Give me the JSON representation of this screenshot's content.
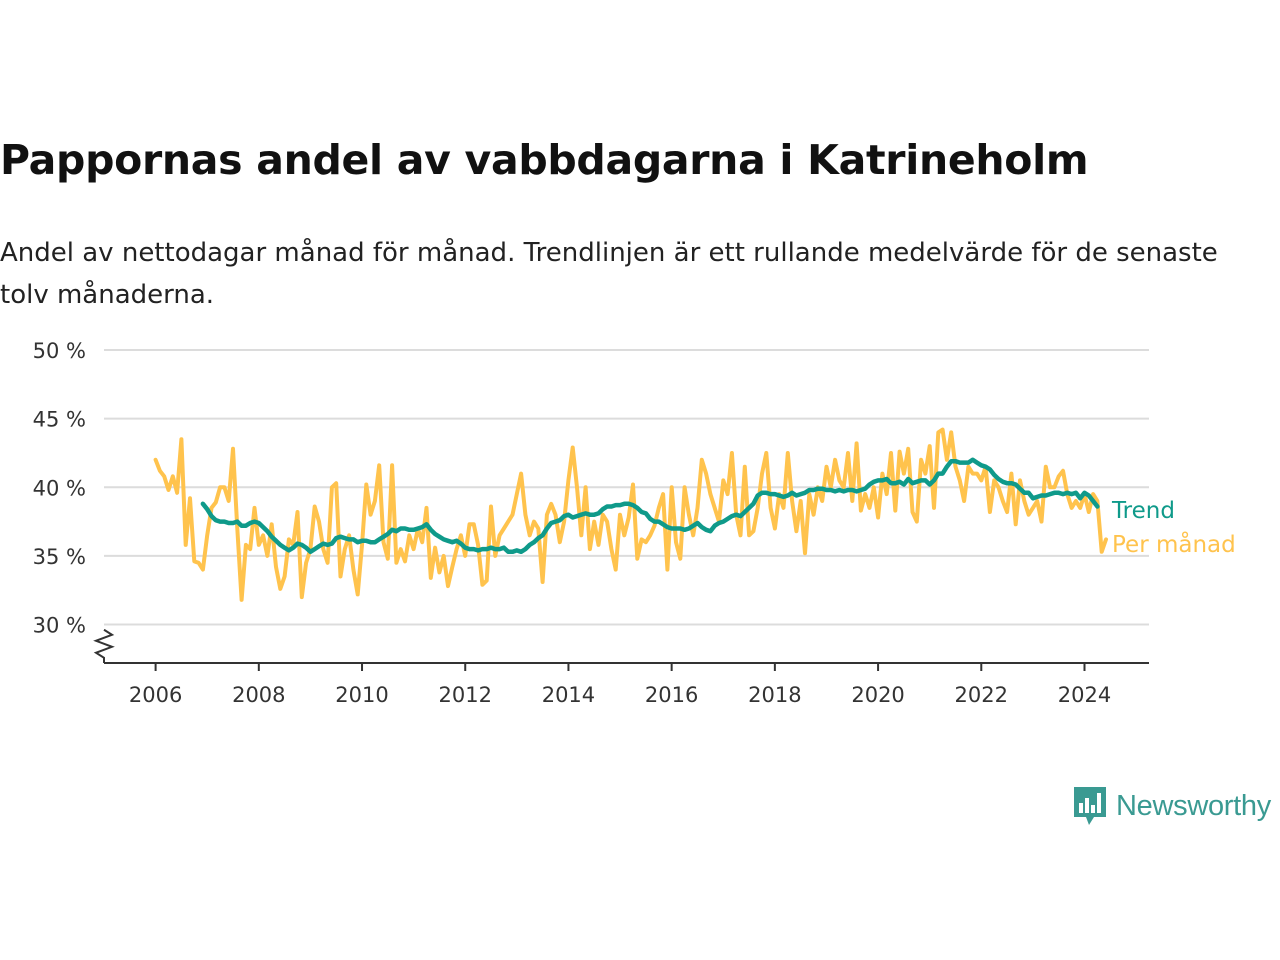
{
  "title": "Pappornas andel av vabbdagarna i Katrineholm",
  "subtitle": "Andel av nettodagar månad för månad. Trendlinjen är ett rullande medelvärde för de senaste tolv månaderna.",
  "brand": {
    "name": "Newsworthy",
    "icon": "newsworthy-logo-icon",
    "color": "#3a9a92"
  },
  "chart_data": {
    "type": "line",
    "title": "Pappornas andel av vabbdagarna i Katrineholm",
    "xlabel": "",
    "ylabel": "",
    "xlim": [
      2005.0,
      2025.25
    ],
    "ylim": [
      27.2,
      50
    ],
    "y_axis_broken": true,
    "x_ticks": [
      2006,
      2008,
      2010,
      2012,
      2014,
      2016,
      2018,
      2020,
      2022,
      2024
    ],
    "x_tick_labels": [
      "2006",
      "2008",
      "2010",
      "2012",
      "2014",
      "2016",
      "2018",
      "2020",
      "2022",
      "2024"
    ],
    "y_ticks": [
      30,
      35,
      40,
      45,
      50
    ],
    "y_tick_labels": [
      "30 %",
      "35 %",
      "40 %",
      "45 %",
      "50 %"
    ],
    "grid": true,
    "legend": "direct labels at line ends (right)",
    "series": [
      {
        "name": "Per månad",
        "color": "#ffc34d",
        "x_start": 2006.0,
        "step": 0.0833333,
        "values": [
          42.0,
          41.2,
          40.8,
          39.8,
          40.8,
          39.6,
          43.5,
          35.8,
          39.2,
          34.6,
          34.5,
          34.0,
          36.5,
          38.5,
          38.9,
          40.0,
          40.0,
          39.0,
          42.8,
          37.0,
          31.8,
          35.8,
          35.5,
          38.5,
          35.8,
          36.5,
          35.0,
          37.3,
          34.2,
          32.6,
          33.5,
          36.2,
          35.8,
          38.2,
          32.0,
          34.5,
          35.5,
          38.6,
          37.5,
          35.5,
          34.5,
          40.0,
          40.3,
          33.5,
          35.5,
          36.5,
          34.0,
          32.2,
          35.8,
          40.2,
          38.0,
          39.0,
          41.6,
          36.0,
          34.8,
          41.6,
          34.5,
          35.5,
          34.6,
          36.5,
          35.5,
          37.0,
          36.0,
          38.5,
          33.4,
          35.6,
          33.8,
          35.0,
          32.8,
          34.2,
          35.5,
          36.5,
          35.0,
          37.3,
          37.3,
          35.8,
          32.9,
          33.2,
          38.6,
          35.0,
          36.5,
          37.0,
          37.5,
          38.0,
          39.5,
          41.0,
          38.0,
          36.5,
          37.5,
          37.0,
          33.1,
          38.0,
          38.8,
          38.0,
          36.0,
          37.5,
          40.5,
          42.9,
          40.0,
          36.5,
          40.0,
          35.5,
          37.5,
          35.8,
          38.0,
          37.5,
          35.5,
          34.0,
          38.0,
          36.5,
          37.8,
          40.2,
          34.8,
          36.2,
          36.0,
          36.5,
          37.2,
          38.5,
          39.5,
          34.0,
          40.0,
          36.0,
          34.8,
          40.0,
          38.0,
          36.5,
          38.5,
          42.0,
          41.0,
          39.5,
          38.5,
          37.5,
          40.5,
          39.5,
          42.5,
          38.0,
          36.5,
          41.5,
          36.5,
          36.8,
          38.5,
          41.0,
          42.5,
          38.5,
          37.0,
          39.5,
          38.5,
          42.5,
          39.0,
          36.8,
          39.0,
          35.2,
          39.5,
          38.0,
          40.0,
          39.0,
          41.5,
          40.0,
          42.0,
          40.5,
          40.0,
          42.5,
          39.0,
          43.2,
          38.3,
          39.5,
          38.5,
          40.0,
          37.8,
          41.0,
          39.5,
          42.5,
          38.3,
          42.6,
          41.0,
          42.8,
          38.2,
          37.5,
          42.0,
          41.0,
          43.0,
          38.5,
          44.0,
          44.2,
          42.0,
          44.0,
          41.5,
          40.5,
          39.0,
          41.5,
          41.0,
          41.0,
          40.5,
          41.5,
          38.2,
          40.5,
          40.0,
          39.0,
          38.2,
          41.0,
          37.3,
          40.5,
          39.0,
          38.0,
          38.5,
          39.0,
          37.5,
          41.5,
          40.0,
          40.0,
          40.8,
          41.2,
          39.5,
          38.5,
          39.0,
          38.5,
          39.5,
          38.2,
          39.5,
          39.0,
          35.3,
          36.2
        ]
      },
      {
        "name": "Trend",
        "color": "#0f9a8a",
        "x_start": 2006.9167,
        "step": 0.0833333,
        "values": [
          38.8,
          38.4,
          37.9,
          37.6,
          37.5,
          37.5,
          37.4,
          37.4,
          37.5,
          37.2,
          37.2,
          37.4,
          37.5,
          37.4,
          37.1,
          36.8,
          36.4,
          36.1,
          35.8,
          35.6,
          35.4,
          35.6,
          35.9,
          35.8,
          35.6,
          35.3,
          35.5,
          35.7,
          35.9,
          35.8,
          35.9,
          36.3,
          36.4,
          36.3,
          36.2,
          36.2,
          36.0,
          36.1,
          36.1,
          36.0,
          36.0,
          36.2,
          36.4,
          36.6,
          36.9,
          36.8,
          37.0,
          37.0,
          36.9,
          36.9,
          37.0,
          37.1,
          37.3,
          36.9,
          36.6,
          36.4,
          36.2,
          36.1,
          36.0,
          36.1,
          35.9,
          35.6,
          35.5,
          35.5,
          35.4,
          35.5,
          35.5,
          35.6,
          35.5,
          35.5,
          35.6,
          35.3,
          35.3,
          35.4,
          35.3,
          35.5,
          35.8,
          36.0,
          36.3,
          36.5,
          37.0,
          37.4,
          37.5,
          37.6,
          37.9,
          38.0,
          37.8,
          37.9,
          38.0,
          38.1,
          38.0,
          38.0,
          38.1,
          38.4,
          38.6,
          38.6,
          38.7,
          38.7,
          38.8,
          38.8,
          38.7,
          38.5,
          38.2,
          38.1,
          37.7,
          37.5,
          37.5,
          37.3,
          37.1,
          37.0,
          37.0,
          37.0,
          36.9,
          37.0,
          37.2,
          37.4,
          37.1,
          36.9,
          36.8,
          37.2,
          37.4,
          37.5,
          37.7,
          37.9,
          38.0,
          37.9,
          38.2,
          38.5,
          38.8,
          39.4,
          39.6,
          39.6,
          39.5,
          39.5,
          39.4,
          39.3,
          39.4,
          39.6,
          39.4,
          39.5,
          39.6,
          39.8,
          39.8,
          39.9,
          39.9,
          39.8,
          39.8,
          39.7,
          39.8,
          39.7,
          39.8,
          39.8,
          39.7,
          39.8,
          39.9,
          40.2,
          40.4,
          40.5,
          40.5,
          40.6,
          40.3,
          40.3,
          40.4,
          40.2,
          40.6,
          40.3,
          40.4,
          40.5,
          40.5,
          40.2,
          40.5,
          41.0,
          41.0,
          41.5,
          41.9,
          41.9,
          41.8,
          41.8,
          41.8,
          42.0,
          41.8,
          41.6,
          41.5,
          41.3,
          40.9,
          40.6,
          40.4,
          40.3,
          40.3,
          40.2,
          39.9,
          39.6,
          39.6,
          39.2,
          39.3,
          39.4,
          39.4,
          39.5,
          39.6,
          39.6,
          39.5,
          39.6,
          39.5,
          39.6,
          39.2,
          39.6,
          39.4,
          39.0,
          38.6
        ]
      }
    ]
  }
}
